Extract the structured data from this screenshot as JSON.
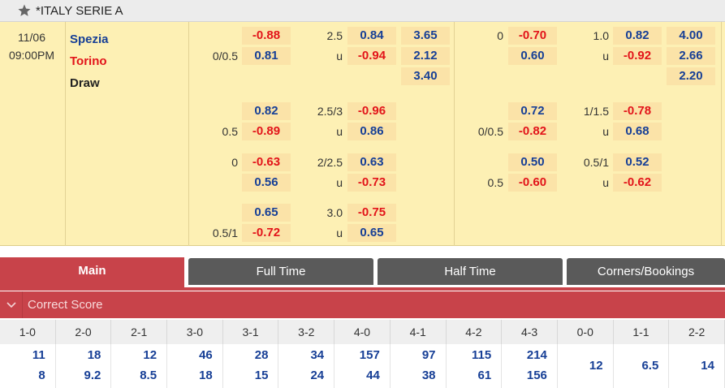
{
  "league": {
    "name": "*ITALY SERIE A",
    "icon": "star-icon"
  },
  "match": {
    "date": "11/06",
    "time": "09:00PM",
    "home": "Spezia",
    "away": "Torino",
    "draw": "Draw",
    "ft": {
      "rows": [
        {
          "hdp_a": "",
          "a_top": "-0.88",
          "hdp_b": "0/0.5",
          "a_bot": "0.81",
          "ou_line": "2.5",
          "o_top": "0.84",
          "ou_u": "u",
          "o_bot": "-0.94"
        },
        {
          "hdp_a": "",
          "a_top": "0.82",
          "hdp_b": "0.5",
          "a_bot": "-0.89",
          "ou_line": "2.5/3",
          "o_top": "-0.96",
          "ou_u": "u",
          "o_bot": "0.86"
        },
        {
          "hdp_a": "0",
          "a_top": "-0.63",
          "hdp_b": "",
          "a_bot": "0.56",
          "ou_line": "2/2.5",
          "o_top": "0.63",
          "ou_u": "u",
          "o_bot": "-0.73"
        },
        {
          "hdp_a": "",
          "a_top": "0.65",
          "hdp_b": "0.5/1",
          "a_bot": "-0.72",
          "ou_line": "3.0",
          "o_top": "-0.75",
          "ou_u": "u",
          "o_bot": "0.65"
        }
      ],
      "x12": [
        "3.65",
        "2.12",
        "3.40"
      ]
    },
    "ht": {
      "rows": [
        {
          "hdp_a": "0",
          "a_top": "-0.70",
          "hdp_b": "",
          "a_bot": "0.60",
          "ou_line": "1.0",
          "o_top": "0.82",
          "ou_u": "u",
          "o_bot": "-0.92"
        },
        {
          "hdp_a": "",
          "a_top": "0.72",
          "hdp_b": "0/0.5",
          "a_bot": "-0.82",
          "ou_line": "1/1.5",
          "o_top": "-0.78",
          "ou_u": "u",
          "o_bot": "0.68"
        },
        {
          "hdp_a": "",
          "a_top": "0.50",
          "hdp_b": "0.5",
          "a_bot": "-0.60",
          "ou_line": "0.5/1",
          "o_top": "0.52",
          "ou_u": "u",
          "o_bot": "-0.62"
        }
      ],
      "x12": [
        "4.00",
        "2.66",
        "2.20"
      ]
    }
  },
  "tabs": [
    {
      "label": "Main",
      "active": true
    },
    {
      "label": "Full Time",
      "active": false
    },
    {
      "label": "Half Time",
      "active": false
    },
    {
      "label": "Corners/Bookings",
      "active": false
    }
  ],
  "correct_score": {
    "title": "Correct Score",
    "icon": "chevron-down-icon",
    "columns": [
      {
        "score": "1-0",
        "home": "11",
        "away": "8"
      },
      {
        "score": "2-0",
        "home": "18",
        "away": "9.2"
      },
      {
        "score": "2-1",
        "home": "12",
        "away": "8.5"
      },
      {
        "score": "3-0",
        "home": "46",
        "away": "18"
      },
      {
        "score": "3-1",
        "home": "28",
        "away": "15"
      },
      {
        "score": "3-2",
        "home": "34",
        "away": "24"
      },
      {
        "score": "4-0",
        "home": "157",
        "away": "44"
      },
      {
        "score": "4-1",
        "home": "97",
        "away": "38"
      },
      {
        "score": "4-2",
        "home": "115",
        "away": "61"
      },
      {
        "score": "4-3",
        "home": "214",
        "away": "156"
      },
      {
        "score": "0-0",
        "single": "12"
      },
      {
        "score": "1-1",
        "single": "6.5"
      },
      {
        "score": "2-2",
        "single": "14"
      }
    ]
  }
}
